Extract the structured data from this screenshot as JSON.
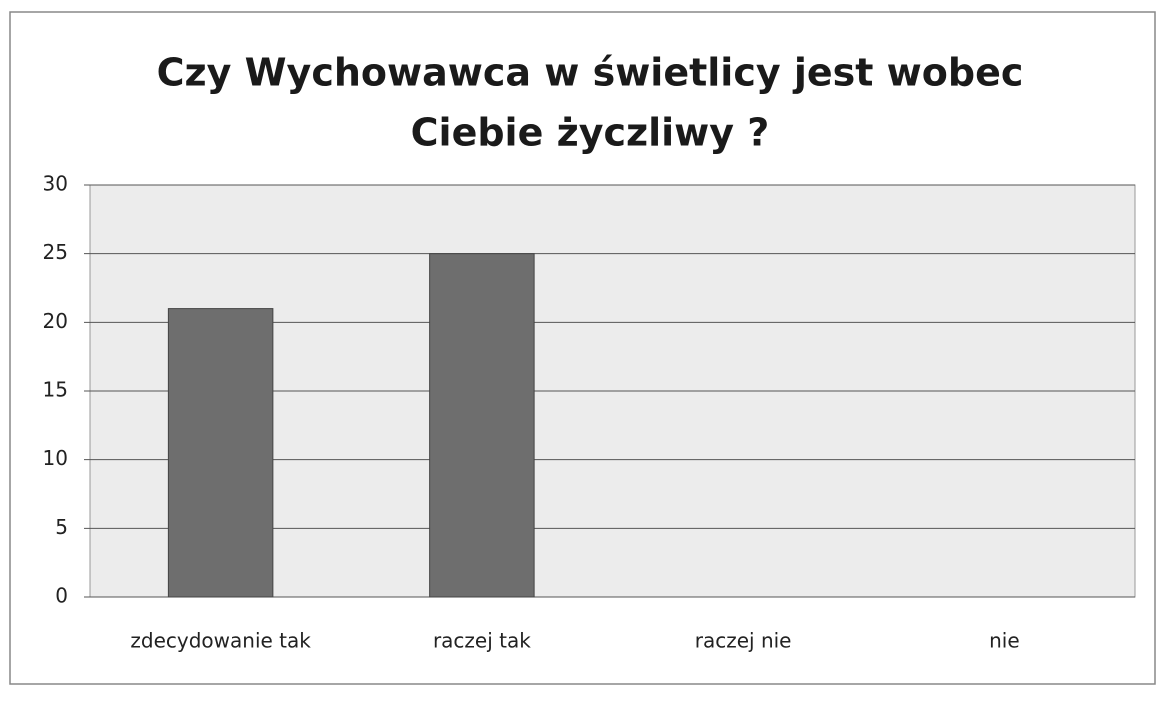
{
  "chart_data": {
    "type": "bar",
    "title": [
      "Czy Wychowawca w świetlicy jest wobec",
      "Ciebie życzliwy ?"
    ],
    "categories": [
      "zdecydowanie tak",
      "raczej tak",
      "raczej nie",
      "nie"
    ],
    "values": [
      21,
      25,
      0,
      0
    ],
    "color": "#6e6e6e",
    "ylim": [
      0,
      30
    ],
    "yticks": [
      0,
      5,
      10,
      15,
      20,
      25,
      30
    ],
    "grid": true
  }
}
